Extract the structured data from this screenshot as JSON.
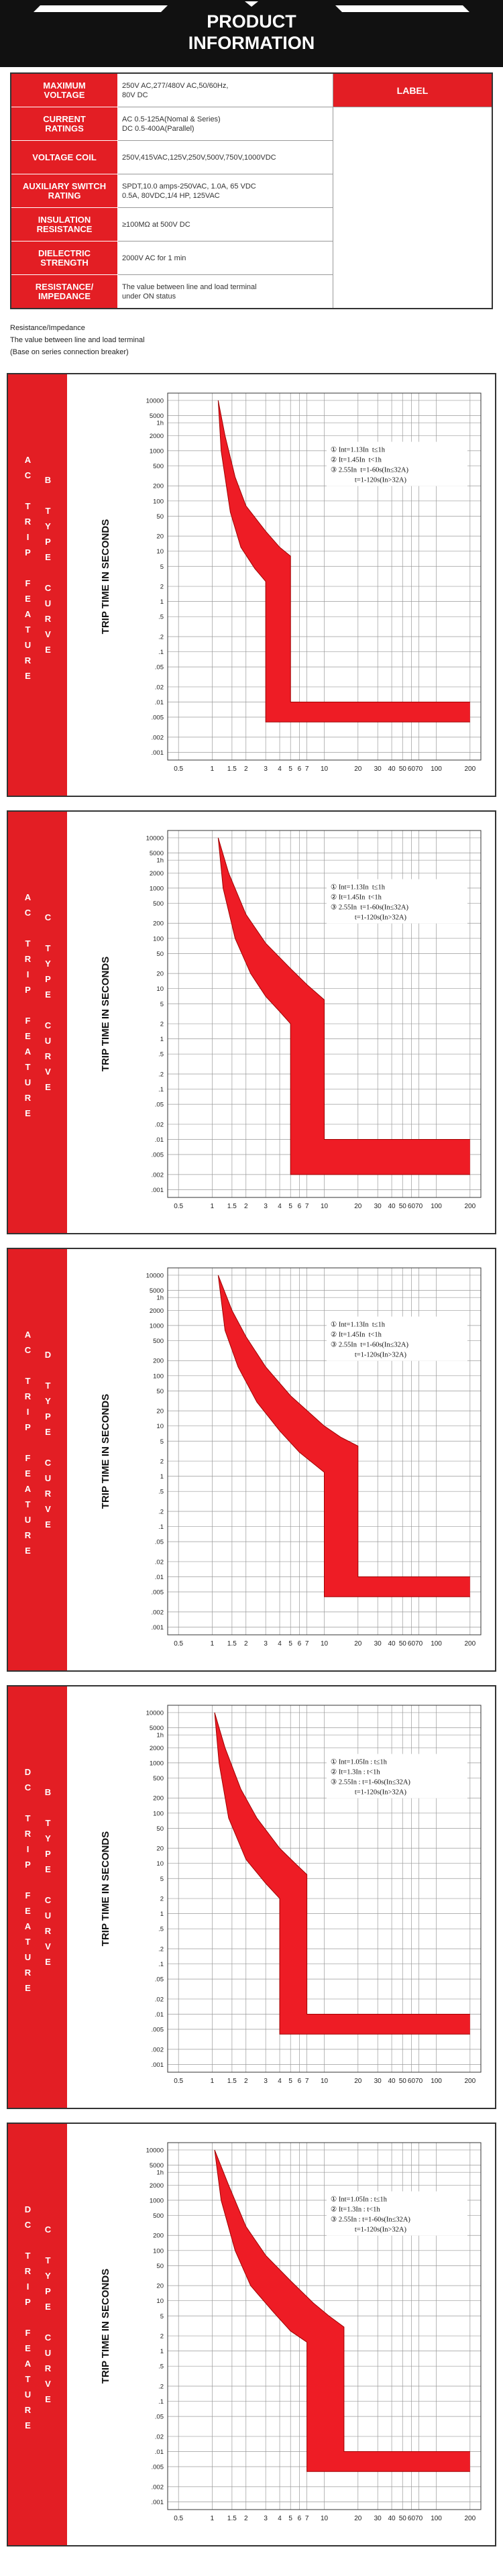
{
  "header": {
    "title_lines": [
      "PRODUCT",
      "INFORMATION"
    ]
  },
  "spec": {
    "label_heading": "LABEL",
    "rows": [
      [
        "MAXIMUM\nVOLTAGE",
        "250V AC,277/480V AC,50/60Hz,\n80V DC"
      ],
      [
        "CURRENT\nRATINGS",
        "AC 0.5-125A(Nomal & Series)\nDC 0.5-400A(Parallel)"
      ],
      [
        "VOLTAGE COIL",
        "250V,415VAC,125V,250V,500V,750V,1000VDC"
      ],
      [
        "AUXILIARY SWITCH\nRATING",
        "SPDT,10.0 amps-250VAC, 1.0A, 65 VDC\n0.5A, 80VDC,1/4 HP, 125VAC"
      ],
      [
        "INSULATION\nRESISTANCE",
        "≥100MΩ at 500V DC"
      ],
      [
        "DIELECTRIC\nSTRENGTH",
        "2000V AC for 1 min"
      ],
      [
        "RESISTANCE/\nIMPEDANCE",
        "The value between line and load terminal\nunder ON status"
      ]
    ]
  },
  "notes": [
    "Resistance/Impedance",
    "The value between line and load terminal",
    "(Base on series connection breaker)"
  ],
  "chart_data": [
    {
      "type": "band",
      "title": "AC TRIP FEATURE",
      "subtitle": "B TYPE CURVE",
      "ylabel": "TRIP TIME IN SECONDS",
      "color": "#ee1c25",
      "xscale": "log",
      "yscale": "log",
      "grid": true,
      "xlim": [
        0.4,
        250
      ],
      "ylim": [
        0.0007,
        14000
      ],
      "xticks": [
        0.5,
        1,
        1.5,
        2,
        3,
        4,
        5,
        6,
        7,
        10,
        20,
        30,
        40,
        50,
        60,
        70,
        100,
        200
      ],
      "yticks": [
        10000,
        5000,
        {
          "value": 3600,
          "label": "1h"
        },
        2000,
        1000,
        500,
        200,
        100,
        50,
        20,
        10,
        5,
        2,
        1,
        {
          "value": 0.5,
          "label": ".5"
        },
        {
          "value": 0.2,
          "label": ".2"
        },
        {
          "value": 0.1,
          "label": ".1"
        },
        {
          "value": 0.05,
          "label": ".05"
        },
        {
          "value": 0.02,
          "label": ".02"
        },
        {
          "value": 0.01,
          "label": ".01"
        },
        {
          "value": 0.005,
          "label": ".005"
        },
        {
          "value": 0.002,
          "label": ".002"
        },
        {
          "value": 0.001,
          "label": ".001"
        }
      ],
      "annotations": [
        "① Int=1.13In  t≤1h",
        "② It=1.45In  t<1h",
        "③ 2.55In  t=1-60s(In≤32A)",
        "t=1-120s(In>32A)"
      ],
      "series": [
        {
          "x": [
            1.13,
            1.3,
            1.6,
            2,
            3,
            4,
            5,
            5,
            200
          ],
          "values": [
            10000,
            2000,
            300,
            80,
            25,
            12,
            8,
            0.01,
            0.01
          ]
        },
        {
          "x": [
            1.13,
            1.2,
            1.45,
            1.8,
            2.4,
            3,
            3,
            200
          ],
          "values": [
            10000,
            1000,
            60,
            12,
            4.5,
            2.5,
            0.004,
            0.004
          ]
        }
      ]
    },
    {
      "type": "band",
      "title": "AC TRIP FEATURE",
      "subtitle": "C TYPE CURVE",
      "ylabel": "TRIP TIME IN SECONDS",
      "color": "#ee1c25",
      "xscale": "log",
      "yscale": "log",
      "grid": true,
      "xlim": [
        0.4,
        250
      ],
      "ylim": [
        0.0007,
        14000
      ],
      "xticks": [
        0.5,
        1,
        1.5,
        2,
        3,
        4,
        5,
        6,
        7,
        10,
        20,
        30,
        40,
        50,
        60,
        70,
        100,
        200
      ],
      "yticks": [
        10000,
        5000,
        {
          "value": 3600,
          "label": "1h"
        },
        2000,
        1000,
        500,
        200,
        100,
        50,
        20,
        10,
        5,
        2,
        1,
        {
          "value": 0.5,
          "label": ".5"
        },
        {
          "value": 0.2,
          "label": ".2"
        },
        {
          "value": 0.1,
          "label": ".1"
        },
        {
          "value": 0.05,
          "label": ".05"
        },
        {
          "value": 0.02,
          "label": ".02"
        },
        {
          "value": 0.01,
          "label": ".01"
        },
        {
          "value": 0.005,
          "label": ".005"
        },
        {
          "value": 0.002,
          "label": ".002"
        },
        {
          "value": 0.001,
          "label": ".001"
        }
      ],
      "annotations": [
        "① Int=1.13In  t≤1h",
        "② It=1.45In  t<1h",
        "③ 2.55In  t=1-60s(In≤32A)",
        "t=1-120s(In>32A)"
      ],
      "series": [
        {
          "x": [
            1.13,
            1.4,
            2,
            3,
            5,
            7,
            10,
            10,
            200
          ],
          "values": [
            10000,
            2000,
            300,
            80,
            25,
            12,
            6,
            0.01,
            0.01
          ]
        },
        {
          "x": [
            1.13,
            1.25,
            1.6,
            2.2,
            3,
            4,
            5,
            5,
            200
          ],
          "values": [
            10000,
            1000,
            100,
            20,
            7,
            3.5,
            2,
            0.002,
            0.002
          ]
        }
      ]
    },
    {
      "type": "band",
      "title": "AC TRIP FEATURE",
      "subtitle": "D TYPE CURVE",
      "ylabel": "TRIP TIME IN SECONDS",
      "color": "#ee1c25",
      "xscale": "log",
      "yscale": "log",
      "grid": true,
      "xlim": [
        0.4,
        250
      ],
      "ylim": [
        0.0007,
        14000
      ],
      "xticks": [
        0.5,
        1,
        1.5,
        2,
        3,
        4,
        5,
        6,
        7,
        10,
        20,
        30,
        40,
        50,
        60,
        70,
        100,
        200
      ],
      "yticks": [
        10000,
        5000,
        {
          "value": 3600,
          "label": "1h"
        },
        2000,
        1000,
        500,
        200,
        100,
        50,
        20,
        10,
        5,
        2,
        1,
        {
          "value": 0.5,
          "label": ".5"
        },
        {
          "value": 0.2,
          "label": ".2"
        },
        {
          "value": 0.1,
          "label": ".1"
        },
        {
          "value": 0.05,
          "label": ".05"
        },
        {
          "value": 0.02,
          "label": ".02"
        },
        {
          "value": 0.01,
          "label": ".01"
        },
        {
          "value": 0.005,
          "label": ".005"
        },
        {
          "value": 0.002,
          "label": ".002"
        },
        {
          "value": 0.001,
          "label": ".001"
        }
      ],
      "annotations": [
        "① Int=1.13In  t≤1h",
        "② It=1.45In  t<1h",
        "③ 2.55In  t=1-60s(In≤32A)",
        "t=1-120s(In>32A)"
      ],
      "series": [
        {
          "x": [
            1.13,
            1.5,
            2,
            3,
            5,
            10,
            14,
            20,
            20,
            200
          ],
          "values": [
            10000,
            2000,
            600,
            150,
            40,
            10,
            6,
            4,
            0.01,
            0.01
          ]
        },
        {
          "x": [
            1.13,
            1.3,
            1.7,
            2.5,
            4,
            6,
            10,
            10,
            200
          ],
          "values": [
            10000,
            800,
            150,
            30,
            8,
            3,
            1.2,
            0.004,
            0.004
          ]
        }
      ]
    },
    {
      "type": "band",
      "title": "DC TRIP FEATURE",
      "subtitle": "B TYPE CURVE",
      "ylabel": "TRIP TIME IN SECONDS",
      "color": "#ee1c25",
      "xscale": "log",
      "yscale": "log",
      "grid": true,
      "xlim": [
        0.4,
        250
      ],
      "ylim": [
        0.0007,
        14000
      ],
      "xticks": [
        0.5,
        1,
        1.5,
        2,
        3,
        4,
        5,
        6,
        7,
        10,
        20,
        30,
        40,
        50,
        60,
        70,
        100,
        200
      ],
      "yticks": [
        10000,
        5000,
        {
          "value": 3600,
          "label": "1h"
        },
        2000,
        1000,
        500,
        200,
        100,
        50,
        20,
        10,
        5,
        2,
        1,
        {
          "value": 0.5,
          "label": ".5"
        },
        {
          "value": 0.2,
          "label": ".2"
        },
        {
          "value": 0.1,
          "label": ".1"
        },
        {
          "value": 0.05,
          "label": ".05"
        },
        {
          "value": 0.02,
          "label": ".02"
        },
        {
          "value": 0.01,
          "label": ".01"
        },
        {
          "value": 0.005,
          "label": ".005"
        },
        {
          "value": 0.002,
          "label": ".002"
        },
        {
          "value": 0.001,
          "label": ".001"
        }
      ],
      "annotations": [
        "① Int=1.05In : t≤1h",
        "② It=1.3In : t<1h",
        "③ 2.55In : t=1-60s(In≤32A)",
        "t=1-120s(In>32A)"
      ],
      "series": [
        {
          "x": [
            1.05,
            1.3,
            1.8,
            2.5,
            4,
            5.5,
            7,
            7,
            200
          ],
          "values": [
            10000,
            2000,
            300,
            80,
            20,
            10,
            6,
            0.01,
            0.01
          ]
        },
        {
          "x": [
            1.05,
            1.15,
            1.4,
            2,
            3,
            4,
            4,
            200
          ],
          "values": [
            10000,
            1000,
            80,
            12,
            4,
            2,
            0.004,
            0.004
          ]
        }
      ]
    },
    {
      "type": "band",
      "title": "DC TRIP FEATURE",
      "subtitle": "C TYPE CURVE",
      "ylabel": "TRIP TIME IN SECONDS",
      "color": "#ee1c25",
      "xscale": "log",
      "yscale": "log",
      "grid": true,
      "xlim": [
        0.4,
        250
      ],
      "ylim": [
        0.0007,
        14000
      ],
      "xticks": [
        0.5,
        1,
        1.5,
        2,
        3,
        4,
        5,
        6,
        7,
        10,
        20,
        30,
        40,
        50,
        60,
        70,
        100,
        200
      ],
      "yticks": [
        10000,
        5000,
        {
          "value": 3600,
          "label": "1h"
        },
        2000,
        1000,
        500,
        200,
        100,
        50,
        20,
        10,
        5,
        2,
        1,
        {
          "value": 0.5,
          "label": ".5"
        },
        {
          "value": 0.2,
          "label": ".2"
        },
        {
          "value": 0.1,
          "label": ".1"
        },
        {
          "value": 0.05,
          "label": ".05"
        },
        {
          "value": 0.02,
          "label": ".02"
        },
        {
          "value": 0.01,
          "label": ".01"
        },
        {
          "value": 0.005,
          "label": ".005"
        },
        {
          "value": 0.002,
          "label": ".002"
        },
        {
          "value": 0.001,
          "label": ".001"
        }
      ],
      "annotations": [
        "① Int=1.05In : t≤1h",
        "② It=1.3In : t<1h",
        "③ 2.55In : t=1-60s(In≤32A)",
        "t=1-120s(In>32A)"
      ],
      "series": [
        {
          "x": [
            1.05,
            1.4,
            2,
            3,
            5,
            8,
            11,
            15,
            15,
            200
          ],
          "values": [
            10000,
            2000,
            300,
            80,
            25,
            9,
            5,
            3,
            0.01,
            0.01
          ]
        },
        {
          "x": [
            1.05,
            1.2,
            1.6,
            2.2,
            3.5,
            5,
            7,
            7,
            200
          ],
          "values": [
            10000,
            1000,
            100,
            20,
            6,
            2.5,
            1.5,
            0.004,
            0.004
          ]
        }
      ]
    }
  ]
}
